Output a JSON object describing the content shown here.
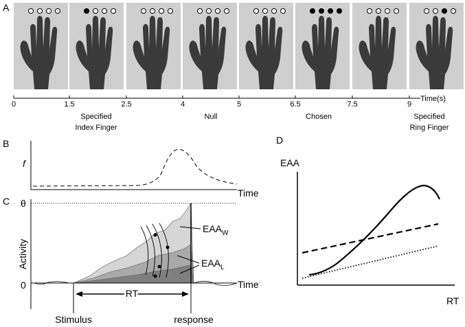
{
  "panel_a": {
    "label": "A",
    "timeline": {
      "ticks": [
        "0",
        "1.5",
        "2.5",
        "4",
        "5",
        "6.5",
        "7.5",
        "9"
      ],
      "unit": "Time(s)"
    },
    "conditions": [
      {
        "lines": [
          "Specified",
          "Index Finger"
        ]
      },
      {
        "lines": [
          "Null"
        ]
      },
      {
        "lines": [
          "Chosen"
        ]
      },
      {
        "lines": [
          "Specified",
          "Ring Finger"
        ]
      }
    ]
  },
  "panel_b": {
    "label": "B",
    "y_label": "f",
    "x_label": "Time"
  },
  "panel_c": {
    "label": "C",
    "threshold": "θ",
    "y_label": "Activity",
    "zero": "0",
    "x_label": "Time",
    "eaa_w": {
      "base": "EAA",
      "sub": "W"
    },
    "eaa_l": {
      "base": "EAA",
      "sub": "L"
    },
    "rt": "RT",
    "stimulus": "Stimulus",
    "response": "response"
  },
  "panel_d": {
    "label": "D",
    "y_label": "EAA",
    "x_label": "RT"
  }
}
